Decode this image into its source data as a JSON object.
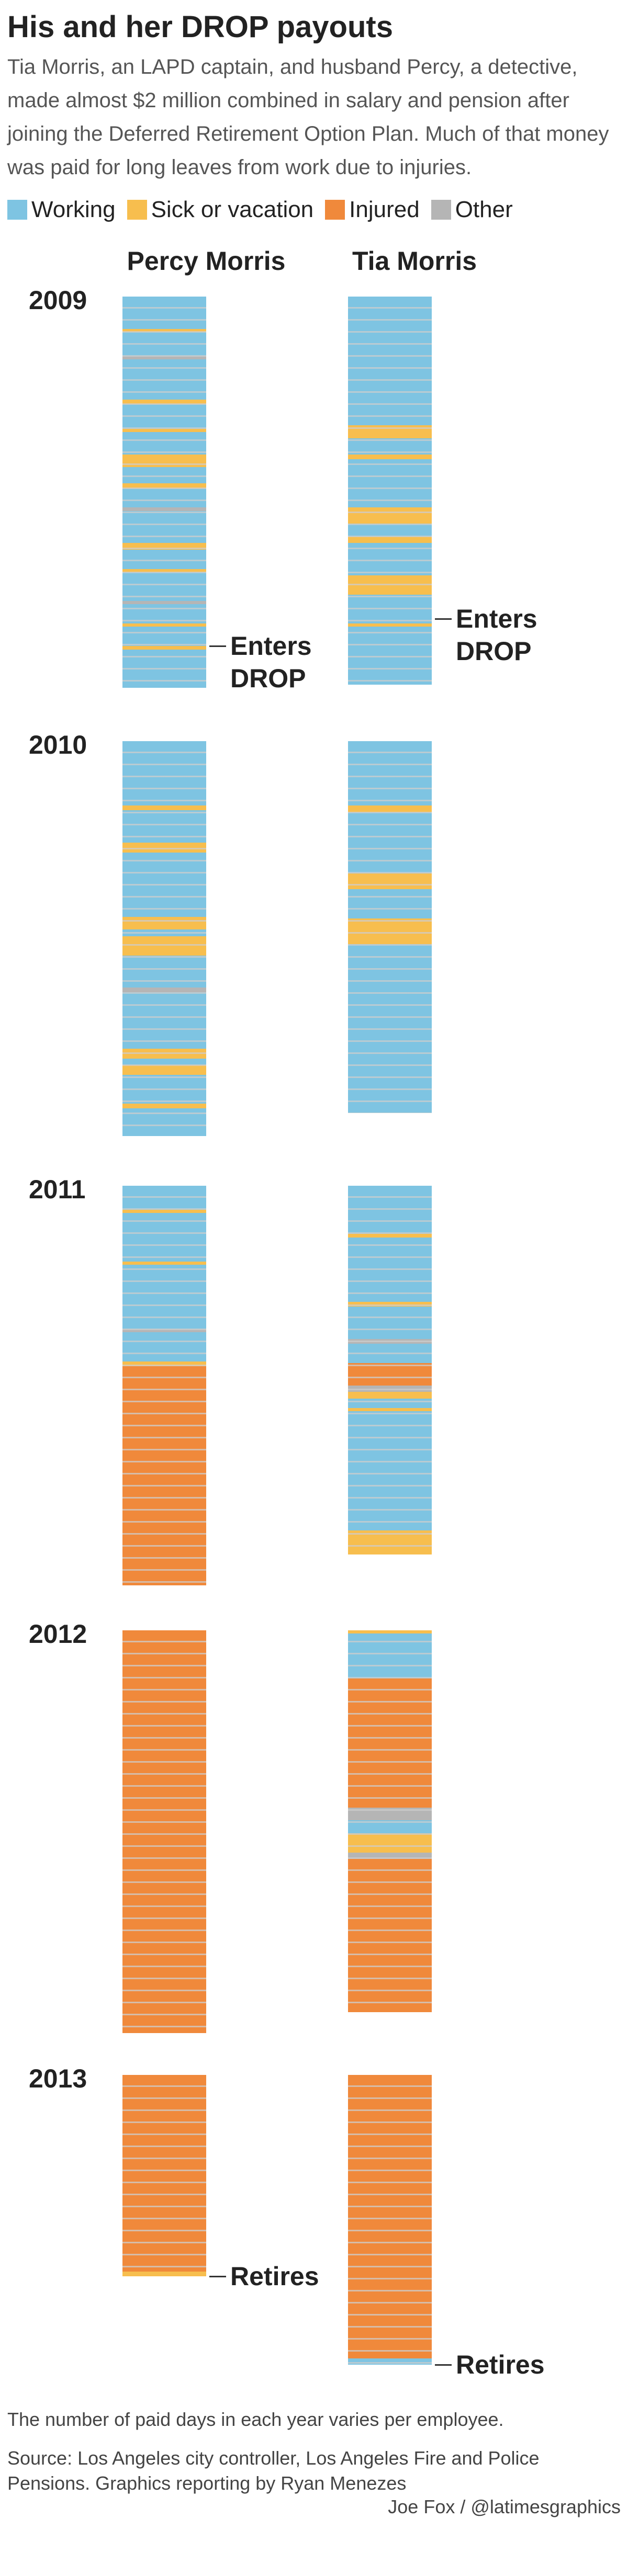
{
  "header": {
    "title": "His and her DROP payouts",
    "intro": "Tia Morris, an LAPD captain, and husband Percy, a detective, made almost $2 million combined in salary and pension after joining the Deferred Retirement Option Plan. Much of that money was paid for long leaves from work due to injuries."
  },
  "legend": [
    {
      "label": "Working",
      "color": "#7ec4e2"
    },
    {
      "label": "Sick or vacation",
      "color": "#f7be4e"
    },
    {
      "label": "Injured",
      "color": "#f0893b"
    },
    {
      "label": "Other",
      "color": "#b5b5b5"
    }
  ],
  "people": [
    "Percy Morris",
    "Tia Morris"
  ],
  "years": [
    {
      "year": "2009",
      "columns": [
        {
          "segments": [
            [
              0,
              20
            ],
            [
              1,
              2
            ],
            [
              0,
              15
            ],
            [
              3,
              2
            ],
            [
              0,
              25
            ],
            [
              1,
              3
            ],
            [
              0,
              15
            ],
            [
              1,
              2
            ],
            [
              0,
              14
            ],
            [
              1,
              8
            ],
            [
              0,
              10
            ],
            [
              1,
              3
            ],
            [
              0,
              12
            ],
            [
              3,
              2
            ],
            [
              0,
              20
            ],
            [
              1,
              4
            ],
            [
              0,
              12
            ],
            [
              1,
              2
            ],
            [
              0,
              18
            ],
            [
              3,
              2
            ],
            [
              0,
              12
            ],
            [
              1,
              2
            ],
            [
              0,
              12
            ],
            [
              1,
              2
            ],
            [
              0,
              24
            ]
          ],
          "annotation": {
            "text": "Enters DROP",
            "day": 217
          }
        },
        {
          "segments": [
            [
              0,
              80
            ],
            [
              1,
              8
            ],
            [
              0,
              10
            ],
            [
              1,
              3
            ],
            [
              0,
              30
            ],
            [
              1,
              10
            ],
            [
              0,
              8
            ],
            [
              1,
              4
            ],
            [
              0,
              20
            ],
            [
              1,
              12
            ],
            [
              0,
              18
            ],
            [
              1,
              2
            ],
            [
              0,
              36
            ]
          ],
          "annotation": {
            "text": "Enters DROP",
            "day": 200
          }
        }
      ]
    },
    {
      "year": "2010",
      "columns": [
        {
          "segments": [
            [
              0,
              40
            ],
            [
              1,
              3
            ],
            [
              0,
              20
            ],
            [
              1,
              6
            ],
            [
              0,
              40
            ],
            [
              1,
              8
            ],
            [
              0,
              4
            ],
            [
              1,
              12
            ],
            [
              0,
              20
            ],
            [
              3,
              3
            ],
            [
              0,
              35
            ],
            [
              1,
              6
            ],
            [
              0,
              4
            ],
            [
              1,
              6
            ],
            [
              0,
              18
            ],
            [
              1,
              3
            ],
            [
              0,
              17
            ]
          ]
        },
        {
          "segments": [
            [
              0,
              40
            ],
            [
              1,
              4
            ],
            [
              0,
              38
            ],
            [
              1,
              10
            ],
            [
              0,
              18
            ],
            [
              1,
              16
            ],
            [
              0,
              105
            ]
          ]
        }
      ]
    },
    {
      "year": "2011",
      "columns": [
        {
          "segments": [
            [
              0,
              15
            ],
            [
              1,
              2
            ],
            [
              0,
              30
            ],
            [
              1,
              2
            ],
            [
              0,
              40
            ],
            [
              3,
              2
            ],
            [
              0,
              18
            ],
            [
              1,
              3
            ],
            [
              2,
              136
            ]
          ]
        },
        {
          "segments": [
            [
              0,
              30
            ],
            [
              1,
              2
            ],
            [
              0,
              40
            ],
            [
              1,
              3
            ],
            [
              0,
              20
            ],
            [
              3,
              3
            ],
            [
              0,
              12
            ],
            [
              2,
              14
            ],
            [
              3,
              4
            ],
            [
              1,
              4
            ],
            [
              0,
              6
            ],
            [
              1,
              2
            ],
            [
              0,
              74
            ],
            [
              1,
              15
            ]
          ]
        }
      ]
    },
    {
      "year": "2012",
      "columns": [
        {
          "segments": [
            [
              2,
              250
            ]
          ]
        },
        {
          "segments": [
            [
              1,
              2
            ],
            [
              0,
              28
            ],
            [
              2,
              80
            ],
            [
              3,
              8
            ],
            [
              0,
              8
            ],
            [
              1,
              12
            ],
            [
              3,
              4
            ],
            [
              2,
              95
            ]
          ]
        }
      ]
    },
    {
      "year": "2013",
      "columns": [
        {
          "segments": [
            [
              2,
              122
            ],
            [
              1,
              3
            ]
          ],
          "annotation": {
            "text": "Retires",
            "day": 125
          }
        },
        {
          "segments": [
            [
              2,
              176
            ],
            [
              0,
              4
            ]
          ],
          "annotation": {
            "text": "Retires",
            "day": 180
          }
        }
      ]
    }
  ],
  "footnote": "The number of paid days in each year varies per employee.",
  "source": "Source: Los Angeles city controller, Los Angeles Fire and Police Pensions. Graphics reporting by Ryan Menezes",
  "credit": "Joe Fox / @latimesgraphics"
}
